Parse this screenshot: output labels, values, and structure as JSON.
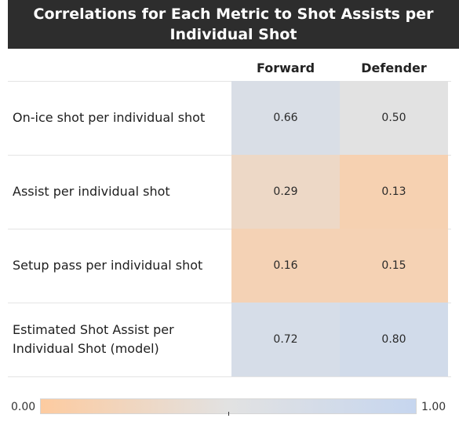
{
  "chart_data": {
    "type": "heatmap",
    "title": "Correlations for Each Metric to Shot Assists per Individual Shot",
    "title_lines": [
      "Correlations for Each Metric to Shot Assists per",
      "Individual Shot"
    ],
    "columns": [
      "Forward",
      "Defender"
    ],
    "rows": [
      {
        "label_lines": [
          "On-ice shot per individual shot"
        ],
        "values": [
          0.66,
          0.5
        ],
        "labels": [
          "0.66",
          "0.50"
        ]
      },
      {
        "label_lines": [
          "Assist per individual shot"
        ],
        "values": [
          0.29,
          0.13
        ],
        "labels": [
          "0.29",
          "0.13"
        ]
      },
      {
        "label_lines": [
          "Setup pass per individual shot"
        ],
        "values": [
          0.16,
          0.15
        ],
        "labels": [
          "0.16",
          "0.15"
        ]
      },
      {
        "label_lines": [
          "Estimated Shot Assist per",
          "Individual Shot (model)"
        ],
        "values": [
          0.72,
          0.8
        ],
        "labels": [
          "0.72",
          "0.80"
        ]
      }
    ],
    "color_scale": {
      "min": 0.0,
      "max": 1.0,
      "center": 0.5,
      "min_label": "0.00",
      "max_label": "1.00",
      "low_color": "#fdcba0",
      "mid_color": "#e2e2e2",
      "high_color": "#c6d6ef"
    }
  }
}
